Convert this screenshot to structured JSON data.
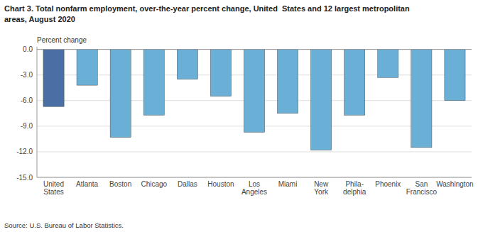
{
  "chart_data": {
    "type": "bar",
    "title": [
      "Chart 3. Total nonfarm employment, over-the-year percent change, United  States and 12 largest metropolitan",
      "areas, August 2020"
    ],
    "ylabel": "Percent change",
    "source": "Source: U.S. Bureau of Labor Statistics.",
    "categories": [
      "United\nStates",
      "Atlanta",
      "Boston",
      "Chicago",
      "Dallas",
      "Houston",
      "Los\nAngeles",
      "Miami",
      "New\nYork",
      "Phila-\ndelphia",
      "Phoenix",
      "San\nFrancisco",
      "Washington"
    ],
    "values": [
      -6.7,
      -4.2,
      -10.3,
      -7.7,
      -3.5,
      -5.5,
      -9.7,
      -7.5,
      -11.8,
      -7.7,
      -3.3,
      -11.5,
      -6.0
    ],
    "colors": [
      "#4a6fa5",
      "#6aafd6",
      "#6aafd6",
      "#6aafd6",
      "#6aafd6",
      "#6aafd6",
      "#6aafd6",
      "#6aafd6",
      "#6aafd6",
      "#6aafd6",
      "#6aafd6",
      "#6aafd6",
      "#6aafd6"
    ],
    "ylim": [
      -15.0,
      0.3
    ],
    "yticks": [
      {
        "value": 0.0,
        "label": "0.0"
      },
      {
        "value": -3.0,
        "label": "-3.0"
      },
      {
        "value": -6.0,
        "label": "-6.0"
      },
      {
        "value": -9.0,
        "label": "-9.0"
      },
      {
        "value": -12.0,
        "label": "-12.0"
      },
      {
        "value": -15.0,
        "label": "-15.0"
      }
    ],
    "grid": true
  }
}
